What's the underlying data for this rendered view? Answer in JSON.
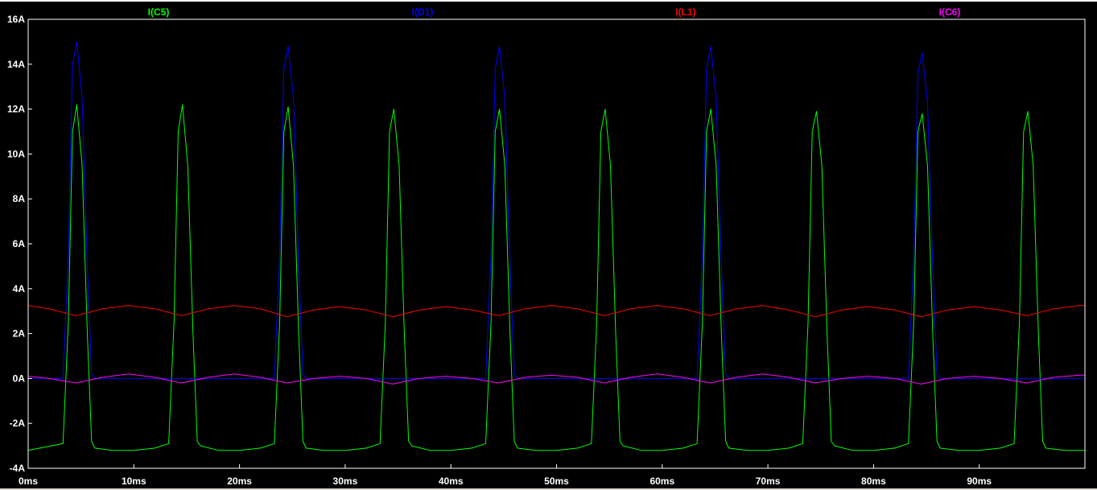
{
  "chart_data": {
    "type": "line",
    "title": "",
    "xlabel": "",
    "ylabel": "",
    "xlim": [
      0,
      100
    ],
    "ylim": [
      -4,
      16
    ],
    "x_unit": "ms",
    "y_unit": "A",
    "grid": false,
    "legend_placement": "top",
    "y_ticks": [
      "16A",
      "14A",
      "12A",
      "10A",
      "8A",
      "6A",
      "4A",
      "2A",
      "0A",
      "-2A",
      "-4A"
    ],
    "y_tick_values": [
      16,
      14,
      12,
      10,
      8,
      6,
      4,
      2,
      0,
      -2,
      -4
    ],
    "x_ticks": [
      "0ms",
      "10ms",
      "20ms",
      "30ms",
      "40ms",
      "50ms",
      "60ms",
      "70ms",
      "80ms",
      "90ms"
    ],
    "x_tick_values": [
      0,
      10,
      20,
      30,
      40,
      50,
      60,
      70,
      80,
      90
    ],
    "series": [
      {
        "name": "I(C5)",
        "color": "#00ff00",
        "x": [
          0,
          3.3,
          3.8,
          4.2,
          4.6,
          5.1,
          5.6,
          6.0,
          6.3,
          8,
          10,
          12,
          13.3,
          13.8,
          14.2,
          14.6,
          15.1,
          15.6,
          16.0,
          16.3,
          18,
          20,
          22,
          23.3,
          23.8,
          24.2,
          24.6,
          25.1,
          25.6,
          26.0,
          26.3,
          28,
          30,
          32,
          33.3,
          33.8,
          34.2,
          34.6,
          35.1,
          35.6,
          36.0,
          36.3,
          38,
          40,
          42,
          43.3,
          43.8,
          44.2,
          44.6,
          45.1,
          45.6,
          46.0,
          46.3,
          48,
          50,
          52,
          53.3,
          53.8,
          54.2,
          54.6,
          55.1,
          55.6,
          56.0,
          56.3,
          58,
          60,
          62,
          63.3,
          63.8,
          64.2,
          64.6,
          65.1,
          65.6,
          66.0,
          66.3,
          68,
          70,
          72,
          73.3,
          73.8,
          74.2,
          74.6,
          75.1,
          75.6,
          76.0,
          76.3,
          78,
          80,
          82,
          83.3,
          83.8,
          84.2,
          84.6,
          85.1,
          85.6,
          86.0,
          86.3,
          88,
          90,
          92,
          93.3,
          93.8,
          94.2,
          94.6,
          95.1,
          95.6,
          96.0,
          96.3,
          98,
          100
        ],
        "y": [
          -3.2,
          -2.9,
          2.5,
          11.0,
          12.2,
          9.5,
          2.0,
          -2.8,
          -3.1,
          -3.2,
          -3.2,
          -3.1,
          -2.9,
          2.5,
          11.0,
          12.2,
          9.5,
          2.0,
          -2.8,
          -3.0,
          -3.2,
          -3.2,
          -3.1,
          -2.9,
          2.5,
          11.0,
          12.1,
          9.5,
          2.0,
          -2.8,
          -3.1,
          -3.2,
          -3.2,
          -3.1,
          -2.9,
          2.5,
          11.0,
          12.0,
          9.5,
          2.0,
          -2.8,
          -3.0,
          -3.2,
          -3.2,
          -3.1,
          -2.9,
          2.5,
          11.0,
          12.0,
          9.5,
          2.0,
          -2.8,
          -3.1,
          -3.2,
          -3.2,
          -3.1,
          -2.9,
          2.5,
          11.0,
          12.0,
          9.5,
          2.0,
          -2.8,
          -3.0,
          -3.2,
          -3.2,
          -3.1,
          -2.9,
          2.5,
          11.0,
          12.0,
          9.5,
          2.0,
          -2.8,
          -3.1,
          -3.2,
          -3.2,
          -3.1,
          -2.9,
          2.5,
          11.0,
          11.9,
          9.5,
          2.0,
          -2.8,
          -3.0,
          -3.2,
          -3.2,
          -3.1,
          -2.9,
          2.5,
          11.0,
          11.8,
          9.5,
          2.0,
          -2.8,
          -3.1,
          -3.2,
          -3.2,
          -3.1,
          -2.9,
          2.5,
          11.0,
          11.9,
          9.5,
          2.0,
          -2.8,
          -3.1,
          -3.2,
          -3.2
        ]
      },
      {
        "name": "I(D1)",
        "color": "#0000ff",
        "x": [
          0,
          3.3,
          3.8,
          4.2,
          4.6,
          5.1,
          5.6,
          6.0,
          6.3,
          23.3,
          23.8,
          24.2,
          24.6,
          25.1,
          25.6,
          26.0,
          26.3,
          43.3,
          43.8,
          44.2,
          44.6,
          45.1,
          45.6,
          46.0,
          46.3,
          63.3,
          63.8,
          64.2,
          64.6,
          65.1,
          65.6,
          66.0,
          66.3,
          83.3,
          83.8,
          84.2,
          84.6,
          85.1,
          85.6,
          86.0,
          86.3,
          100
        ],
        "y": [
          0,
          0,
          5.5,
          14.0,
          15.0,
          12.5,
          5.0,
          0.2,
          0,
          0,
          5.5,
          13.8,
          14.8,
          12.5,
          5.0,
          0.2,
          0,
          0,
          5.5,
          13.8,
          14.8,
          12.5,
          5.0,
          0.2,
          0,
          0,
          5.5,
          13.8,
          14.8,
          12.5,
          5.0,
          0.2,
          0,
          0,
          5.5,
          13.6,
          14.5,
          12.3,
          5.0,
          0.2,
          0,
          0
        ]
      },
      {
        "name": "I(L1)",
        "color": "#ff0000",
        "x": [
          0,
          2,
          4.5,
          7,
          9.5,
          12,
          14.5,
          17,
          19.5,
          22,
          24.5,
          27,
          29.5,
          32,
          34.5,
          37,
          39.5,
          42,
          44.5,
          47,
          49.5,
          52,
          54.5,
          57,
          59.5,
          62,
          64.5,
          67,
          69.5,
          72,
          74.5,
          77,
          79.5,
          82,
          84.5,
          87,
          89.5,
          92,
          94.5,
          97,
          99.5,
          100
        ],
        "y": [
          3.25,
          3.1,
          2.8,
          3.1,
          3.25,
          3.1,
          2.8,
          3.1,
          3.25,
          3.1,
          2.75,
          3.05,
          3.2,
          3.05,
          2.75,
          3.05,
          3.2,
          3.05,
          2.8,
          3.1,
          3.25,
          3.1,
          2.8,
          3.1,
          3.25,
          3.1,
          2.8,
          3.1,
          3.25,
          3.05,
          2.75,
          3.05,
          3.2,
          3.05,
          2.75,
          3.05,
          3.2,
          3.05,
          2.8,
          3.1,
          3.25,
          3.25
        ]
      },
      {
        "name": "I(C6)",
        "color": "#ff00ff",
        "x": [
          0,
          2,
          4.5,
          7,
          9.5,
          12,
          14.5,
          17,
          19.5,
          22,
          24.5,
          27,
          29.5,
          32,
          34.5,
          37,
          39.5,
          42,
          44.5,
          47,
          49.5,
          52,
          54.5,
          57,
          59.5,
          62,
          64.5,
          67,
          69.5,
          72,
          74.5,
          77,
          79.5,
          82,
          84.5,
          87,
          89.5,
          92,
          94.5,
          97,
          99.5,
          100
        ],
        "y": [
          0.1,
          0.0,
          -0.2,
          0.05,
          0.2,
          0.05,
          -0.2,
          0.05,
          0.2,
          0.05,
          -0.2,
          0.0,
          0.1,
          0.0,
          -0.25,
          0.0,
          0.1,
          0.0,
          -0.2,
          0.05,
          0.15,
          0.05,
          -0.2,
          0.05,
          0.2,
          0.05,
          -0.2,
          0.05,
          0.2,
          0.05,
          -0.2,
          0.0,
          0.1,
          0.0,
          -0.25,
          0.0,
          0.1,
          0.0,
          -0.2,
          0.05,
          0.15,
          0.15
        ]
      }
    ]
  }
}
